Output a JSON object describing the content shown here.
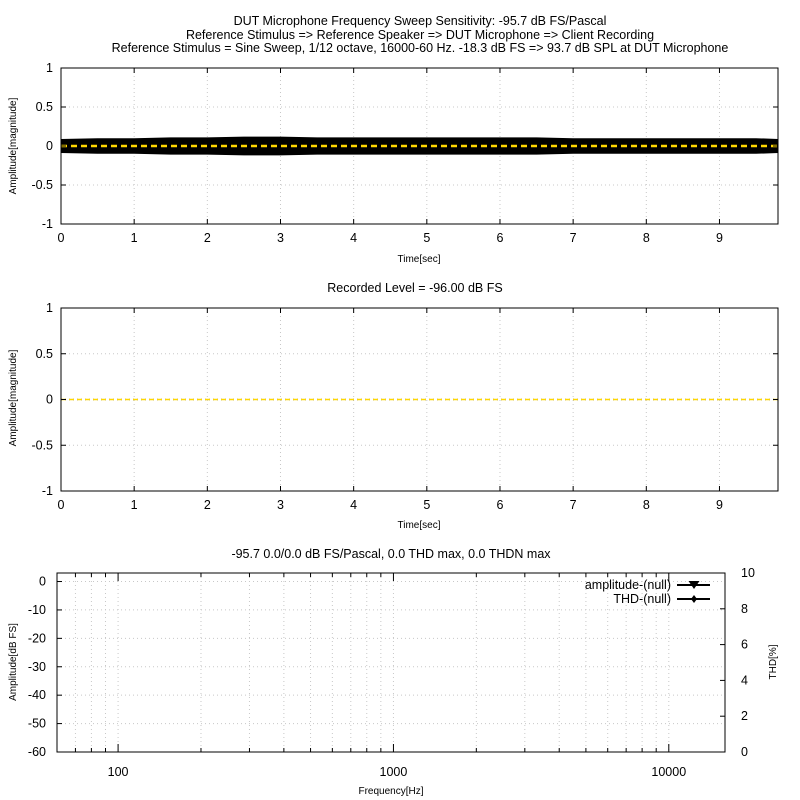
{
  "title_lines": [
    "DUT Microphone Frequency Sweep Sensitivity: -95.7 dB FS/Pascal",
    "Reference Stimulus => Reference Speaker => DUT Microphone => Client Recording",
    "Reference Stimulus = Sine Sweep, 1/12 octave, 16000-60 Hz. -18.3 dB FS => 93.7 dB SPL at DUT Microphone"
  ],
  "colors": {
    "waveform": "#000000",
    "baseline": "#ffd700",
    "grid": "#c8c8c8",
    "axis": "#000000"
  },
  "chart_data": [
    {
      "type": "line",
      "title": "",
      "xlabel": "Time[sec]",
      "ylabel": "Amplitude[magnitude]",
      "xlim": [
        0,
        9.8
      ],
      "ylim": [
        -1,
        1
      ],
      "xticks": [
        "0",
        "1",
        "2",
        "3",
        "4",
        "5",
        "6",
        "7",
        "8",
        "9"
      ],
      "yticks": [
        "1",
        "0.5",
        "0",
        "-0.5",
        "-1"
      ],
      "grid": true,
      "series": [
        {
          "x": [
            0,
            0.5,
            1,
            1.5,
            2,
            2.5,
            3,
            3.5,
            4,
            4.5,
            5,
            5.5,
            6,
            6.5,
            7,
            7.5,
            8,
            8.5,
            9,
            9.5,
            9.8
          ],
          "envelope": [
            0.09,
            0.1,
            0.1,
            0.11,
            0.11,
            0.12,
            0.12,
            0.11,
            0.11,
            0.11,
            0.11,
            0.11,
            0.11,
            0.11,
            0.1,
            0.1,
            0.1,
            0.1,
            0.1,
            0.1,
            0.09
          ]
        },
        {
          "x": [
            0,
            9.8
          ],
          "y": [
            0,
            0
          ]
        }
      ]
    },
    {
      "type": "line",
      "title": "Recorded Level = -96.00 dB FS",
      "xlabel": "Time[sec]",
      "ylabel": "Amplitude[magnitude]",
      "xlim": [
        0,
        9.8
      ],
      "ylim": [
        -1,
        1
      ],
      "xticks": [
        "0",
        "1",
        "2",
        "3",
        "4",
        "5",
        "6",
        "7",
        "8",
        "9"
      ],
      "yticks": [
        "1",
        "0.5",
        "0",
        "-0.5",
        "-1"
      ],
      "grid": true,
      "series": [
        {
          "x": [
            0,
            9.8
          ],
          "y": [
            0,
            0
          ]
        }
      ]
    },
    {
      "type": "line",
      "title": "-95.7 0.0/0.0 dB FS/Pascal, 0.0 THD max, 0.0 THDN max",
      "xlabel": "Frequency[Hz]",
      "ylabel": "Amplitude[dB FS]",
      "y2label": "THD[%]",
      "xscale": "log",
      "xlim": [
        60,
        16000
      ],
      "ylim": [
        -60,
        3
      ],
      "y2lim": [
        0,
        10
      ],
      "xticks": [
        "100",
        "1000",
        "10000"
      ],
      "yticks": [
        "0",
        "-10",
        "-20",
        "-30",
        "-40",
        "-50",
        "-60"
      ],
      "y2ticks": [
        "10",
        "8",
        "6",
        "4",
        "2",
        "0"
      ],
      "grid": true,
      "legend_position": "top-right",
      "series": [
        {
          "name": "amplitude-(null)",
          "x": [],
          "y": []
        },
        {
          "name": "THD-(null)",
          "x": [],
          "y": []
        }
      ]
    }
  ]
}
